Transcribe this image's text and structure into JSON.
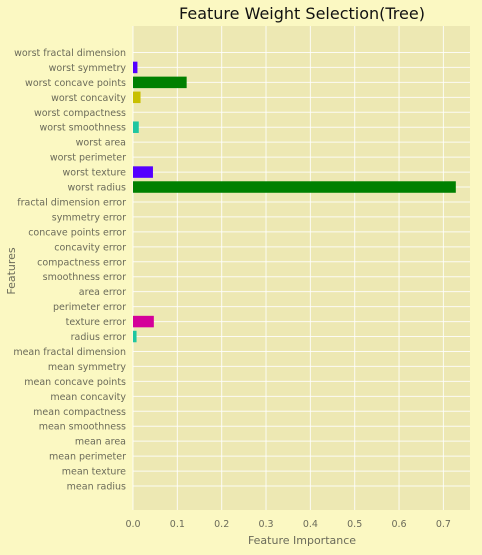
{
  "chart_data": {
    "type": "bar",
    "orientation": "horizontal",
    "title": "Feature Weight Selection(Tree)",
    "xlabel": "Feature Importance",
    "ylabel": "Features",
    "xlim": [
      0,
      0.76
    ],
    "xticks": [
      "0.0",
      "0.1",
      "0.2",
      "0.3",
      "0.4",
      "0.5",
      "0.6",
      "0.7"
    ],
    "grid": true,
    "categories": [
      "mean radius",
      "mean texture",
      "mean perimeter",
      "mean area",
      "mean smoothness",
      "mean compactness",
      "mean concavity",
      "mean concave points",
      "mean symmetry",
      "mean fractal dimension",
      "radius error",
      "texture error",
      "perimeter error",
      "area error",
      "smoothness error",
      "compactness error",
      "concavity error",
      "concave points error",
      "symmetry error",
      "fractal dimension error",
      "worst radius",
      "worst texture",
      "worst perimeter",
      "worst area",
      "worst smoothness",
      "worst compactness",
      "worst concavity",
      "worst concave points",
      "worst symmetry",
      "worst fractal dimension"
    ],
    "values": [
      0,
      0,
      0,
      0,
      0,
      0,
      0,
      0,
      0,
      0,
      0.008,
      0.047,
      0,
      0,
      0,
      0,
      0,
      0,
      0,
      0,
      0.728,
      0.045,
      0,
      0,
      0.013,
      0,
      0.017,
      0.121,
      0.01,
      0
    ],
    "bar_colors": [
      "#ff0000",
      "#00c0c0",
      "#4a0aff",
      "#1a8a8a",
      "#8a8a00",
      "#c000c0",
      "#00c0c0",
      "#ff0000",
      "#4a0aff",
      "#008000",
      "#1fc6a0",
      "#d4009a",
      "#00c0c0",
      "#4a0aff",
      "#008000",
      "#c000c0",
      "#00c0c0",
      "#4a0aff",
      "#008000",
      "#c000c0",
      "#008000",
      "#5500ff",
      "#008000",
      "#c000c0",
      "#1fc6a0",
      "#4a0aff",
      "#c8c000",
      "#008000",
      "#5500ff",
      "#c000c0"
    ],
    "plot_background": "#ede8b3",
    "page_background": "#fbf8c2",
    "grid_color": "#ffffff"
  }
}
